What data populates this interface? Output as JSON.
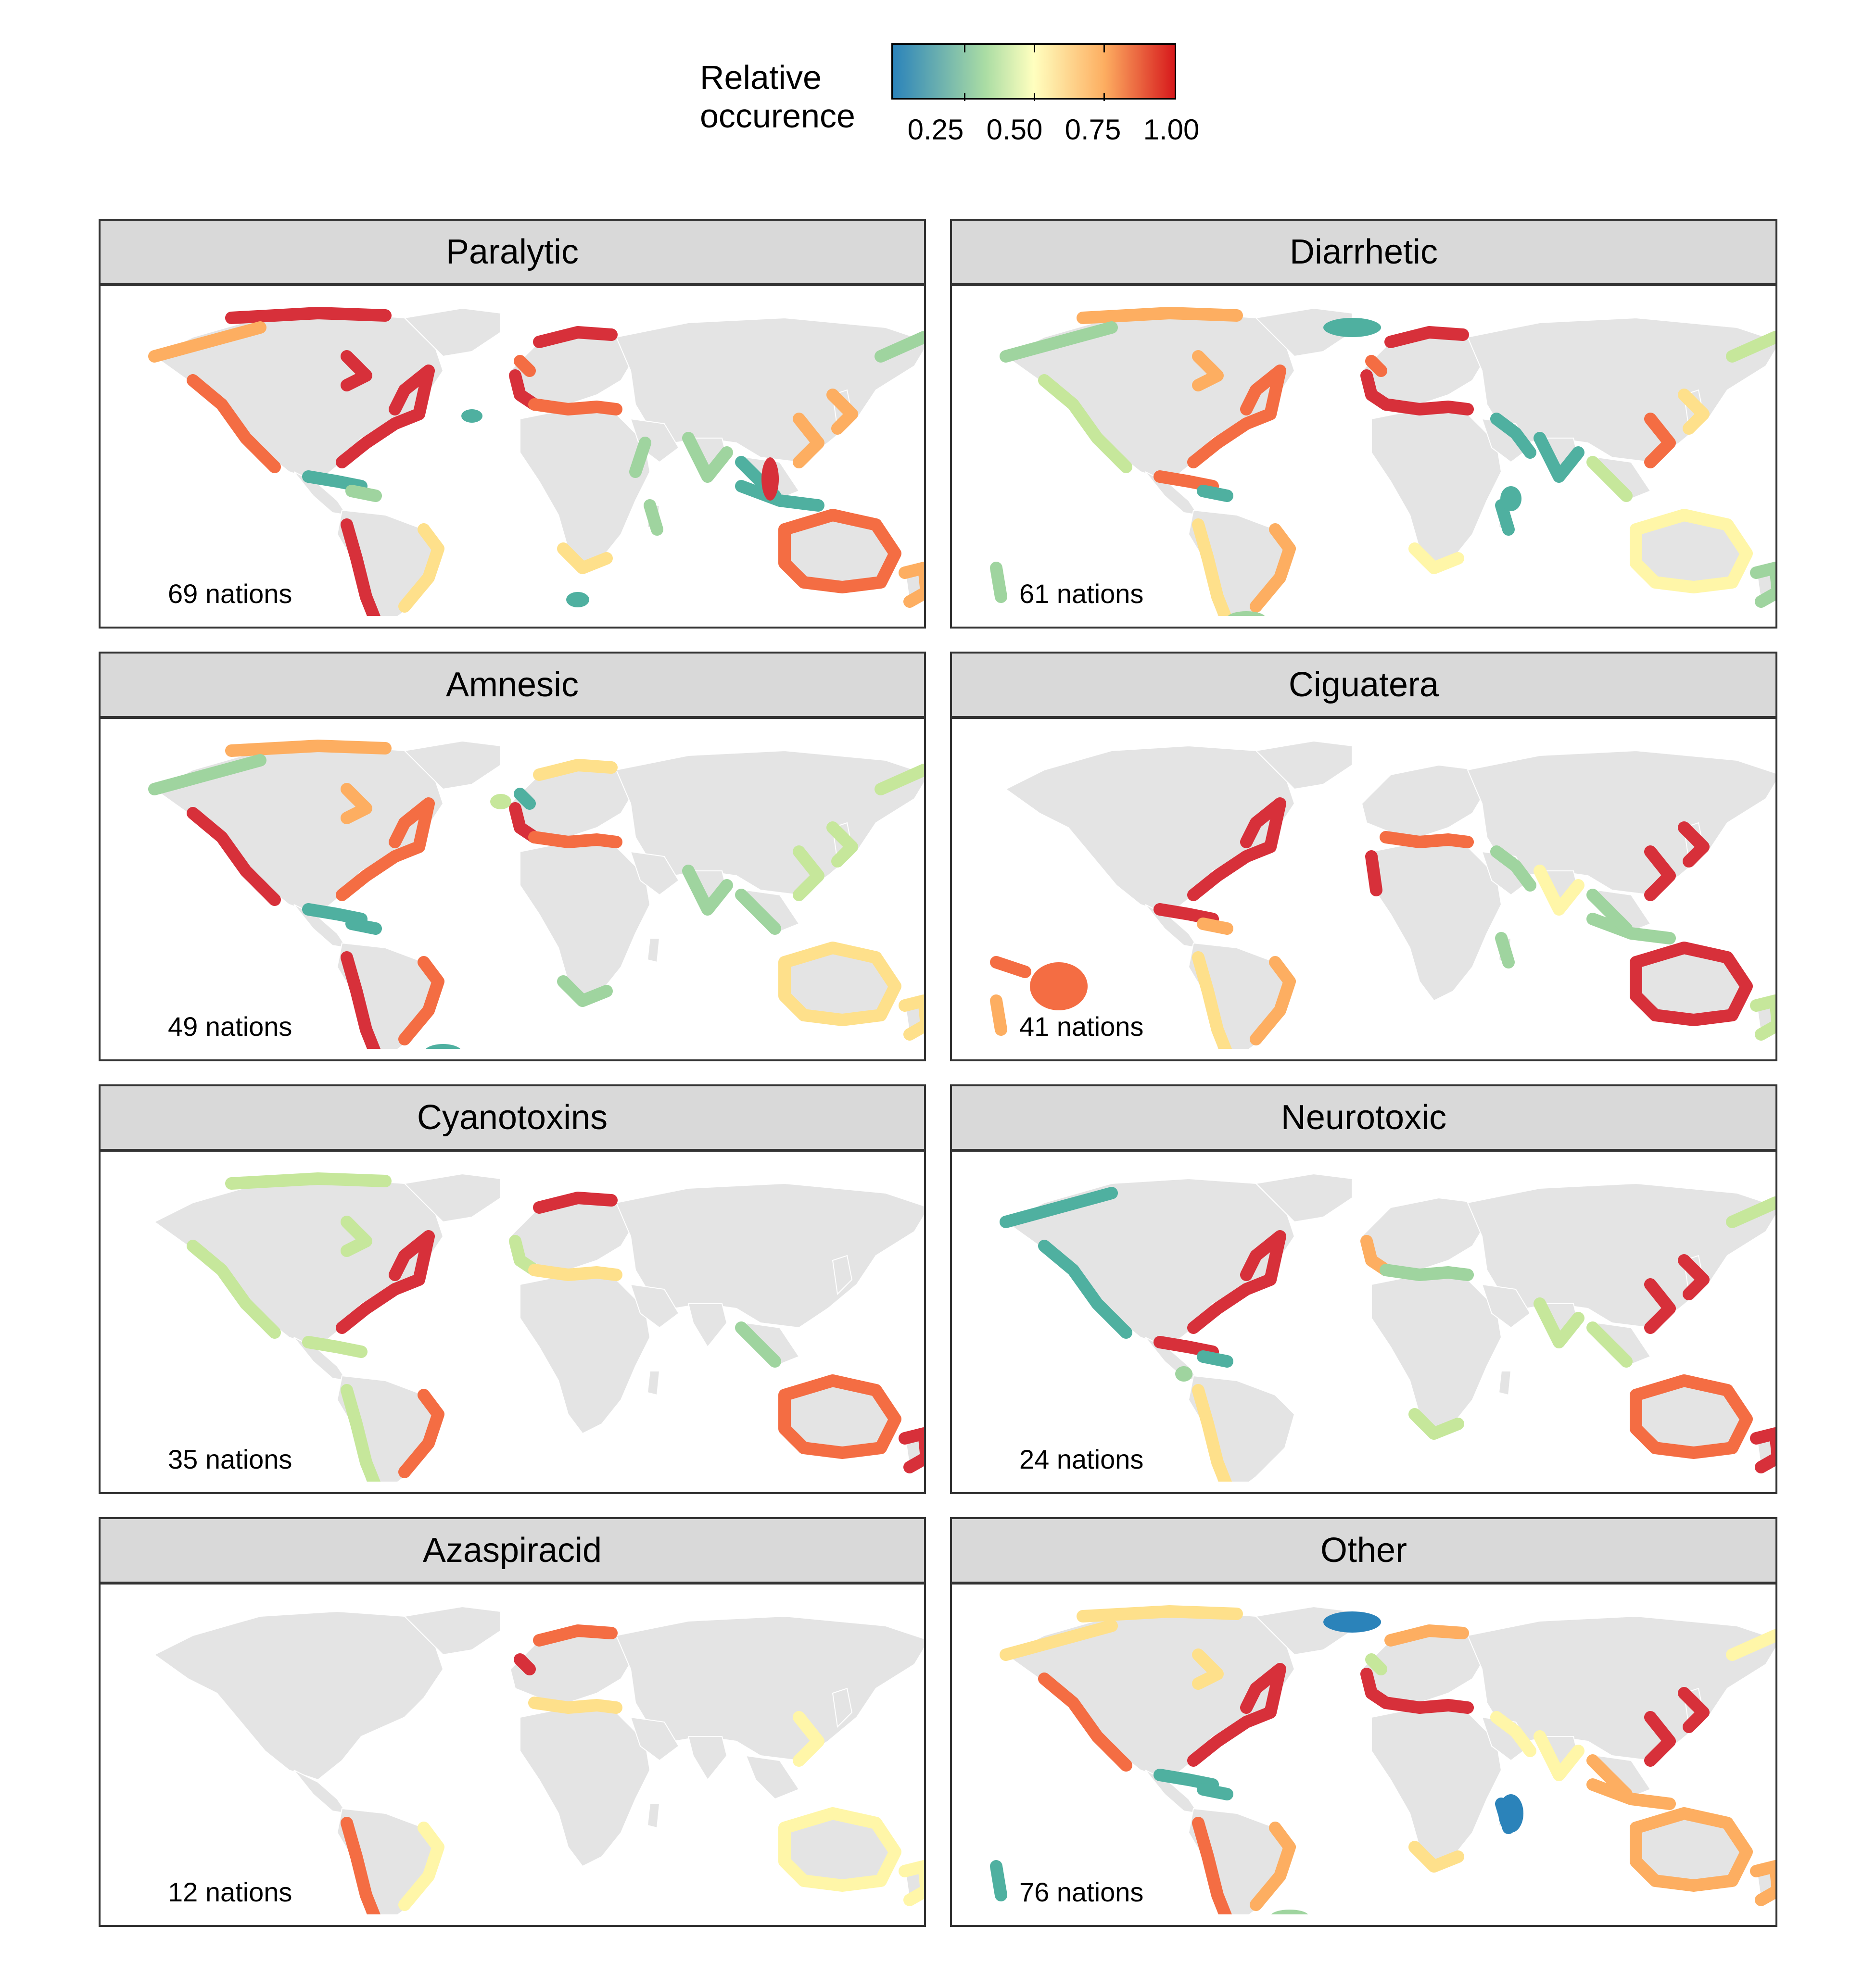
{
  "legend": {
    "title_line1": "Relative",
    "title_line2": "occurence",
    "ticks": [
      "0.25",
      "0.50",
      "0.75",
      "1.00"
    ]
  },
  "palette": {
    "low": "#2b83ba",
    "midlow": "#abdda4",
    "mid": "#ffffbf",
    "midhigh": "#fdae61",
    "high": "#d7191c",
    "land": "#e4e4e4",
    "strip": "#d9d9d9"
  },
  "panels": [
    {
      "title": "Paralytic",
      "nations": "69 nations"
    },
    {
      "title": "Diarrhetic",
      "nations": "61 nations"
    },
    {
      "title": "Amnesic",
      "nations": "49 nations"
    },
    {
      "title": "Ciguatera",
      "nations": "41 nations"
    },
    {
      "title": "Cyanotoxins",
      "nations": "35 nations"
    },
    {
      "title": "Neurotoxic",
      "nations": "24 nations"
    },
    {
      "title": "Azaspiracid",
      "nations": "12 nations"
    },
    {
      "title": "Other",
      "nations": "76 nations"
    }
  ]
}
